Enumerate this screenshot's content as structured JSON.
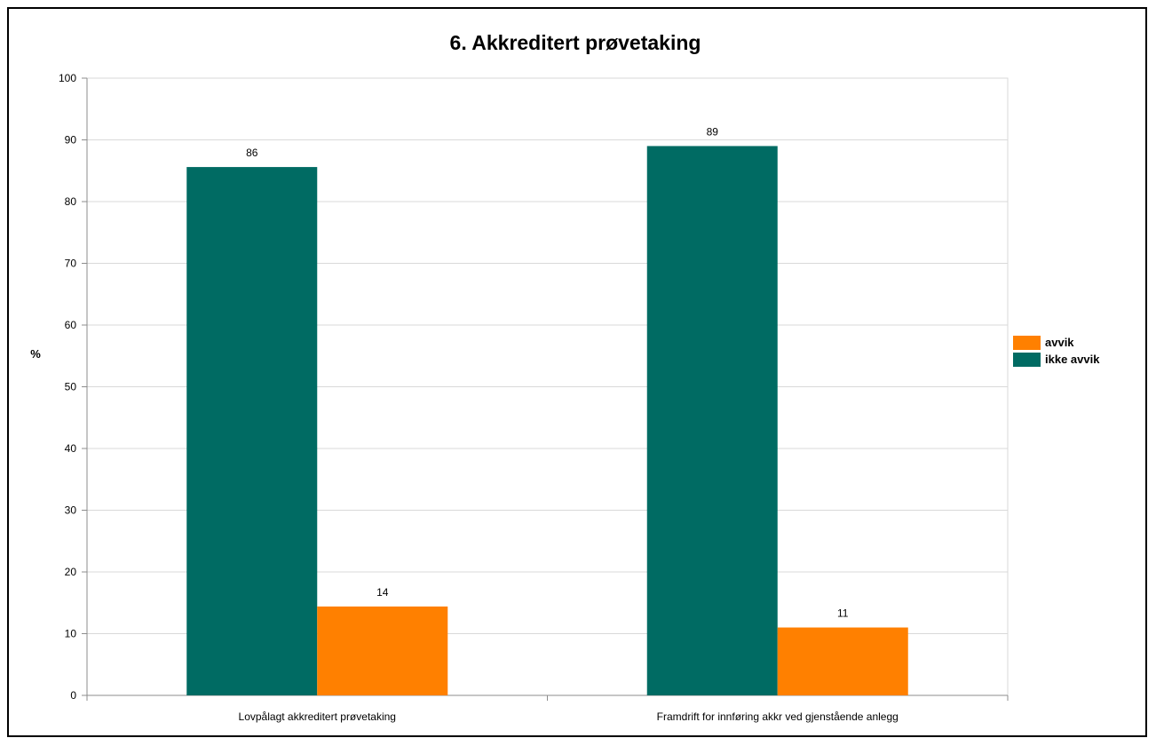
{
  "chart_data": {
    "type": "bar",
    "title": "6. Akkreditert prøvetaking",
    "xlabel": "",
    "ylabel": "%",
    "ylim": [
      0,
      100
    ],
    "ytick_step": 10,
    "yticks": [
      "0",
      "10",
      "20",
      "30",
      "40",
      "50",
      "60",
      "70",
      "80",
      "90",
      "100"
    ],
    "categories": [
      "Lovpålagt akkreditert prøvetaking",
      "Framdrift for innføring akkr ved gjenstående anlegg"
    ],
    "series": [
      {
        "name": "ikke avvik",
        "values": [
          85.6,
          89
        ],
        "data_labels": [
          "86",
          "89"
        ],
        "color": "#006B63"
      },
      {
        "name": "avvik",
        "values": [
          14.4,
          11
        ],
        "data_labels": [
          "14",
          "11"
        ],
        "color": "#FF8000"
      }
    ],
    "legend": {
      "placement": "right",
      "entries": [
        {
          "label": "avvik",
          "color": "#FF8000"
        },
        {
          "label": "ikke avvik",
          "color": "#006B63"
        }
      ]
    },
    "grid": true,
    "gridline_color": "#D9D9D9"
  }
}
